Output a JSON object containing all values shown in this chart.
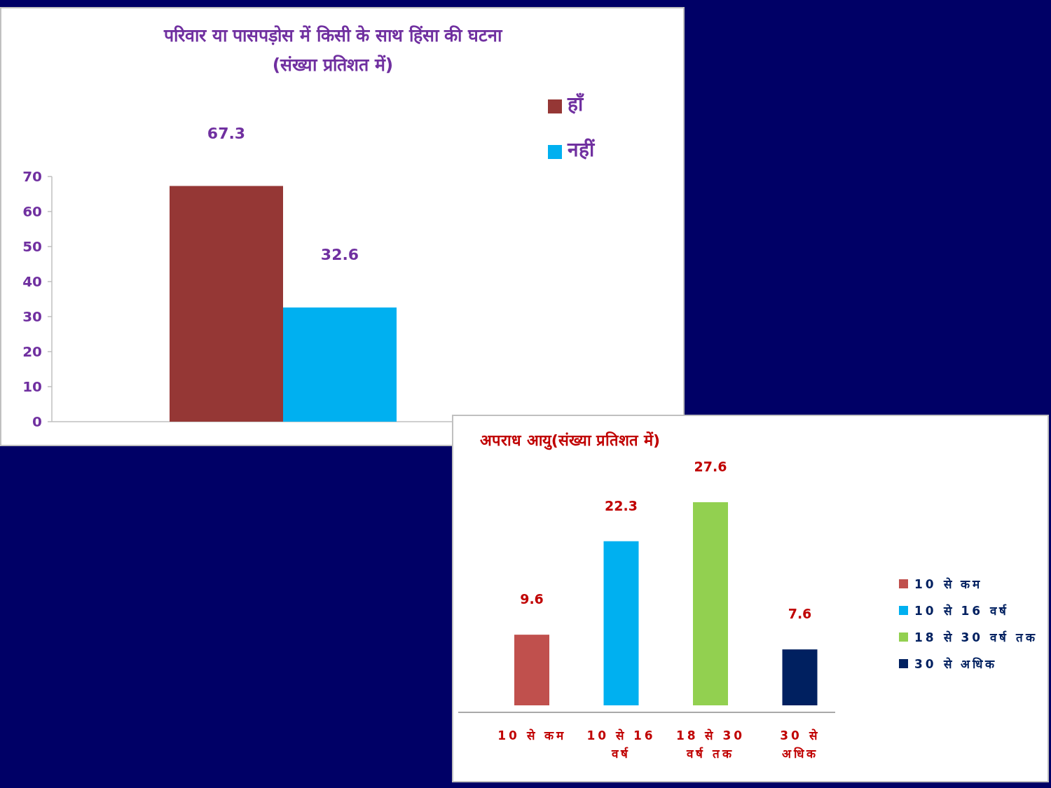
{
  "chart_data": [
    {
      "type": "bar",
      "title": "परिवार या पासपड़ोस में किसी के साथ हिंसा की घटना",
      "subtitle": "(संख्या प्रतिशत में)",
      "categories": [
        null
      ],
      "series": [
        {
          "name": "हाँ",
          "color": "#953735",
          "values": [
            67.3
          ]
        },
        {
          "name": "नहीं",
          "color": "#00b0f0",
          "values": [
            32.6
          ]
        }
      ],
      "ylim": [
        0,
        70
      ],
      "yticks": [
        0,
        10,
        20,
        30,
        40,
        50,
        60,
        70
      ],
      "data_labels": true,
      "legend": "top right"
    },
    {
      "type": "bar",
      "title": "अपराध आयु(संख्या प्रतिशत में)",
      "categories": [
        "10 से कम",
        "10 से 16 वर्ष",
        "18 से 30 वर्ष तक",
        "30 से अधिक"
      ],
      "series": [
        {
          "name": "10 से कम",
          "color": "#c0504d",
          "values": [
            9.6,
            null,
            null,
            null
          ]
        },
        {
          "name": "10 से 16 वर्ष",
          "color": "#00b0f0",
          "values": [
            null,
            22.3,
            null,
            null
          ]
        },
        {
          "name": "18 से 30 वर्ष तक",
          "color": "#92d050",
          "values": [
            null,
            null,
            27.6,
            null
          ]
        },
        {
          "name": "30 से अधिक",
          "color": "#002060",
          "values": [
            null,
            null,
            null,
            7.6
          ]
        }
      ],
      "data_labels": true,
      "legend": "right"
    }
  ]
}
